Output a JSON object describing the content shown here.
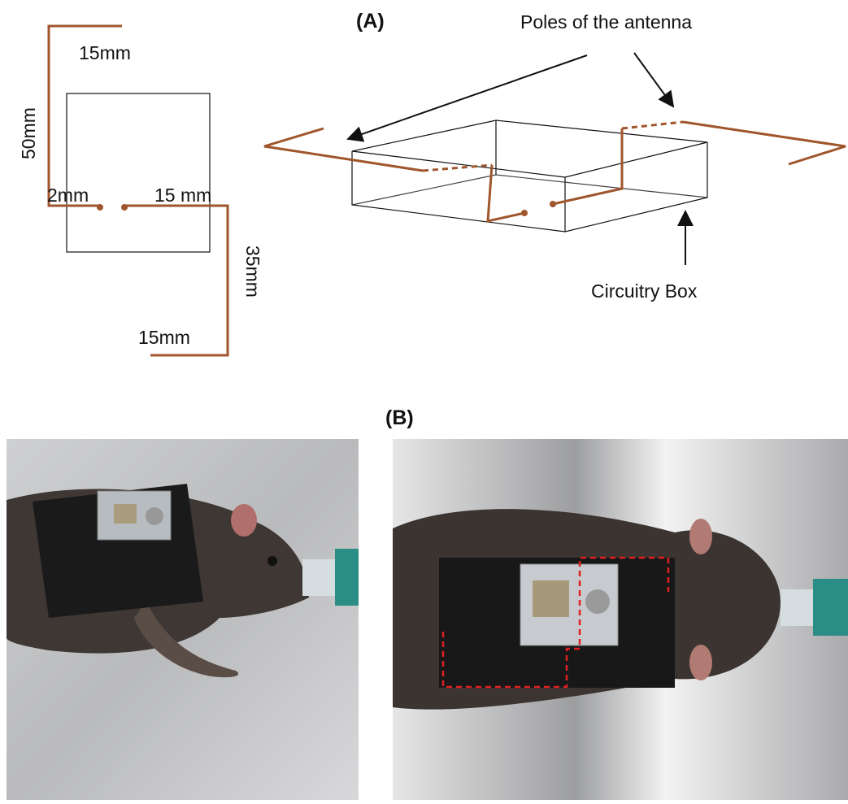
{
  "panel_a": {
    "label": "(A)",
    "dimensions": {
      "top_arm": "15mm",
      "left_height": "50mm",
      "gap": "2mm",
      "right_feed": "15 mm",
      "right_height": "35mm",
      "bottom_arm": "15mm"
    },
    "annotations": {
      "poles": "Poles of the antenna",
      "box": "Circuitry Box"
    }
  },
  "panel_b": {
    "label": "(B)"
  }
}
